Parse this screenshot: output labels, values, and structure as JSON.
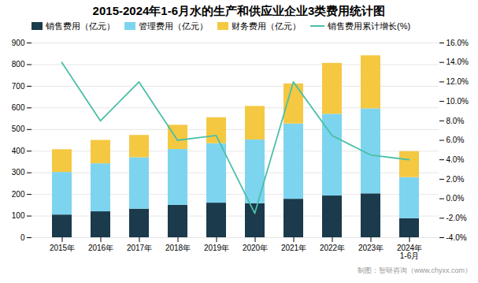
{
  "chart_data": {
    "type": "bar",
    "title": "2015-2024年1-6月水的生产和供应业企业3类费用统计图",
    "categories": [
      "2015年",
      "2016年",
      "2017年",
      "2018年",
      "2019年",
      "2020年",
      "2021年",
      "2022年",
      "2023年",
      "2024年\n1-6月"
    ],
    "stacked": true,
    "series": [
      {
        "name": "销售费用（亿元）",
        "type": "bar",
        "color": "#1b3a4b",
        "values": [
          105,
          120,
          132,
          150,
          160,
          157,
          178,
          193,
          203,
          88
        ]
      },
      {
        "name": "管理费用（亿元）",
        "type": "bar",
        "color": "#7dd4ef",
        "values": [
          197,
          222,
          238,
          258,
          275,
          295,
          348,
          378,
          393,
          190
        ]
      },
      {
        "name": "财务费用（亿元）",
        "type": "bar",
        "color": "#f5c842",
        "values": [
          105,
          108,
          103,
          112,
          120,
          155,
          185,
          235,
          245,
          120
        ]
      },
      {
        "name": "销售费用累计增长(%)",
        "type": "line",
        "axis": "y2",
        "color": "#4bbfa8",
        "values": [
          14.0,
          8.0,
          12.0,
          6.0,
          6.5,
          -1.5,
          12.0,
          6.5,
          4.5,
          4.0
        ]
      }
    ],
    "ylim": [
      0,
      900
    ],
    "yticks": [
      0,
      100,
      200,
      300,
      400,
      500,
      600,
      700,
      800,
      900
    ],
    "y2lim": [
      -4.0,
      16.0
    ],
    "y2ticks": [
      {
        "value": -4.0,
        "label": "-4.0%"
      },
      {
        "value": -2.0,
        "label": "-2.0%"
      },
      {
        "value": 0.0,
        "label": "0.0%"
      },
      {
        "value": 2.0,
        "label": "2.0%"
      },
      {
        "value": 4.0,
        "label": "4.0%"
      },
      {
        "value": 6.0,
        "label": "6.0%"
      },
      {
        "value": 8.0,
        "label": "8.0%"
      },
      {
        "value": 10.0,
        "label": "10.0%"
      },
      {
        "value": 12.0,
        "label": "12.0%"
      },
      {
        "value": 14.0,
        "label": "14.0%"
      },
      {
        "value": 16.0,
        "label": "16.0%"
      }
    ],
    "grid": true,
    "legend": "top",
    "annotations": [
      "制图：智研咨询（www.chyxx.com）"
    ]
  }
}
